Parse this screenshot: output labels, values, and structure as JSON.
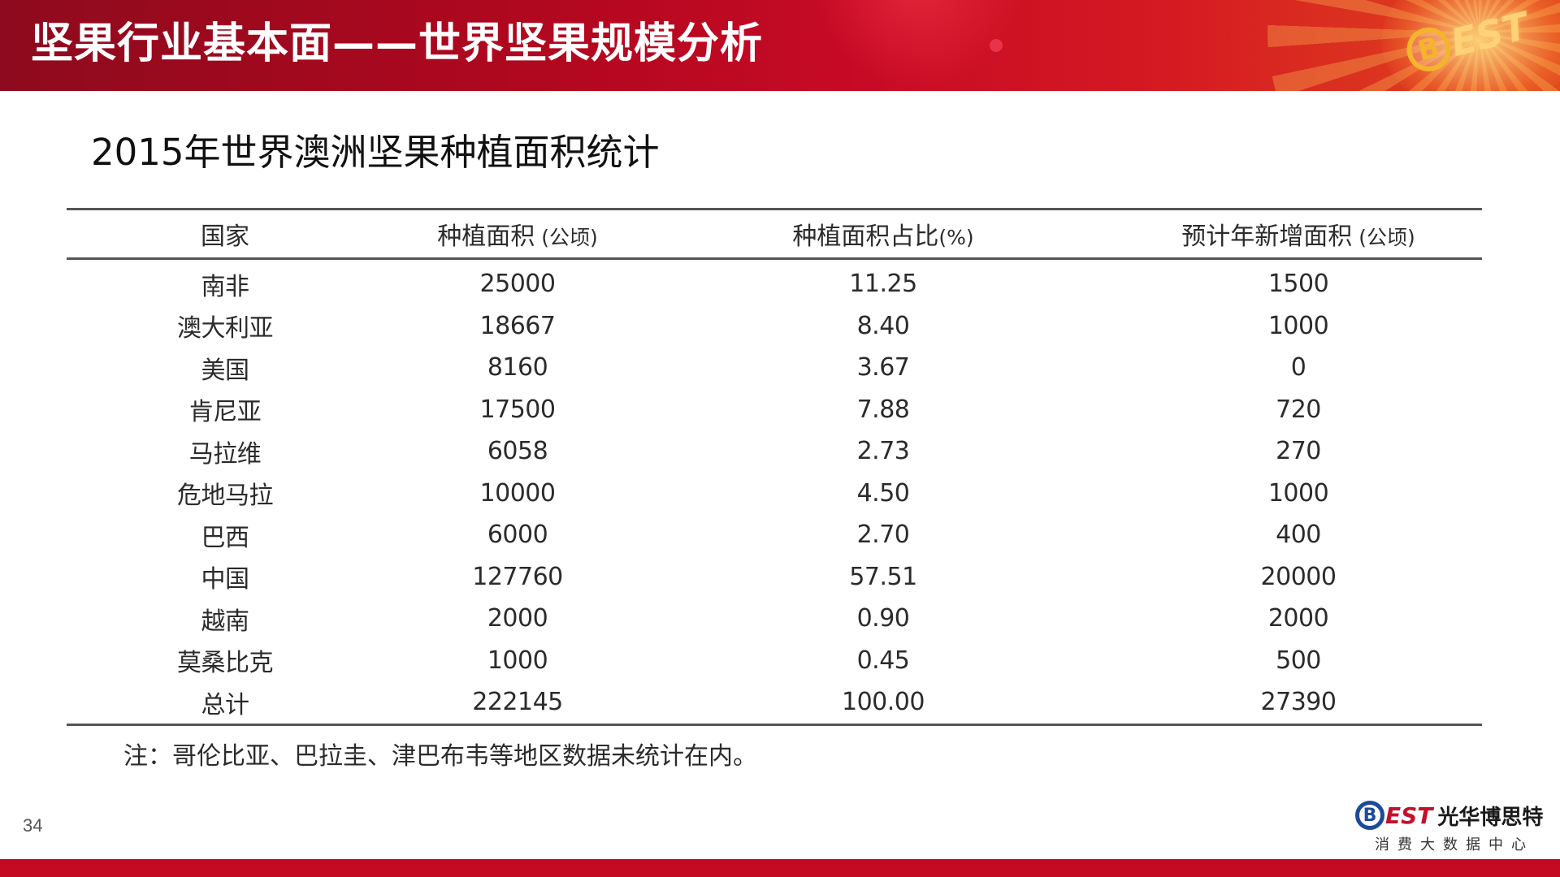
{
  "header": {
    "title": "坚果行业基本面——世界坚果规模分析",
    "logo_letter": "B",
    "logo_rest": "EST"
  },
  "subtitle": "2015年世界澳洲坚果种植面积统计",
  "table": {
    "headers": [
      {
        "label": "国家",
        "unit": ""
      },
      {
        "label": "种植面积",
        "unit": " (公顷)"
      },
      {
        "label": "种植面积占比",
        "unit": "(%)"
      },
      {
        "label": "预计年新增面积",
        "unit": " (公顷)"
      }
    ],
    "rows": [
      [
        "南非",
        "25000",
        "11.25",
        "1500"
      ],
      [
        "澳大利亚",
        "18667",
        "8.40",
        "1000"
      ],
      [
        "美国",
        "8160",
        "3.67",
        "0"
      ],
      [
        "肯尼亚",
        "17500",
        "7.88",
        "720"
      ],
      [
        "马拉维",
        "6058",
        "2.73",
        "270"
      ],
      [
        "危地马拉",
        "10000",
        "4.50",
        "1000"
      ],
      [
        "巴西",
        "6000",
        "2.70",
        "400"
      ],
      [
        "中国",
        "127760",
        "57.51",
        "20000"
      ],
      [
        "越南",
        "2000",
        "0.90",
        "2000"
      ],
      [
        "莫桑比克",
        "1000",
        "0.45",
        "500"
      ],
      [
        "总计",
        "222145",
        "100.00",
        "27390"
      ]
    ]
  },
  "note": "注：哥伦比亚、巴拉圭、津巴布韦等地区数据未统计在内。",
  "page_number": "34",
  "footer": {
    "logo_letter": "B",
    "logo_rest": "EST",
    "company_name": "光华博思特",
    "tagline": "消费大数据中心"
  },
  "colors": {
    "brand_red": "#c40a22",
    "header_dark_red": "#8e0a1e",
    "logo_gold": "#f4b52c",
    "logo_blue": "#1d4a9c"
  }
}
